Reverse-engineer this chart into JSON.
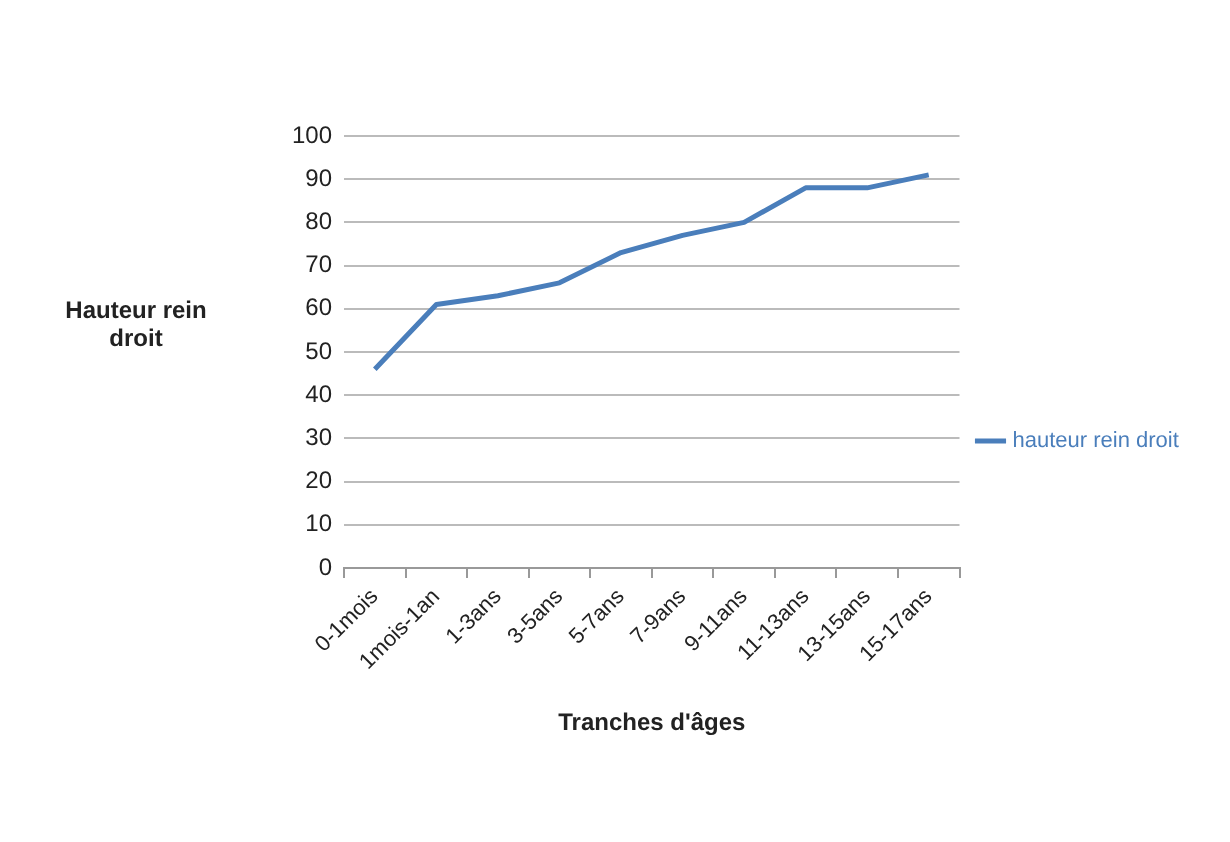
{
  "chart_data": {
    "type": "line",
    "xlabel": "Tranches d'âges",
    "ylabel": "Hauteur rein droit",
    "categories": [
      "0-1mois",
      "1mois-1an",
      "1-3ans",
      "3-5ans",
      "5-7ans",
      "7-9ans",
      "9-11ans",
      "11-13ans",
      "13-15ans",
      "15-17ans"
    ],
    "series": [
      {
        "name": "hauteur rein droit",
        "color": "#4a7ebb",
        "values": [
          46,
          61,
          63,
          66,
          73,
          77,
          80,
          88,
          88,
          91
        ]
      }
    ],
    "ylim": [
      0,
      100
    ],
    "yticks": [
      0,
      10,
      20,
      30,
      40,
      50,
      60,
      70,
      80,
      90,
      100
    ],
    "grid": "y",
    "legend": "right",
    "marker": "none",
    "line_style": "solid"
  }
}
